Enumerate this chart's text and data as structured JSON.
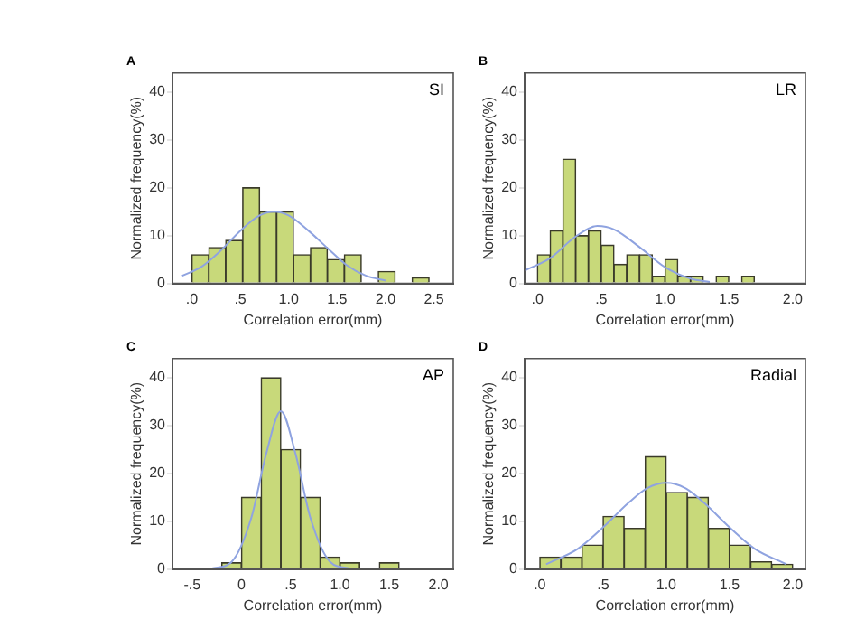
{
  "chart_data": [
    {
      "type": "histogram",
      "title": "A",
      "annotations": [
        "SI"
      ],
      "xlabel": "Correlation error(mm)",
      "ylabel": "Normalized frequency(%)",
      "bins": [
        0,
        0.175,
        0.35,
        0.525,
        0.7,
        0.875,
        1.05,
        1.225,
        1.4,
        1.575,
        1.75,
        1.925,
        2.1,
        2.275,
        2.45
      ],
      "xlim": [
        -0.2,
        2.7
      ],
      "ylim": [
        0,
        44
      ],
      "xticks": [
        {
          "value": 0,
          "label": ".0"
        },
        {
          "value": 0.5,
          "label": ".5"
        },
        {
          "value": 1,
          "label": "1.0"
        },
        {
          "value": 1.5,
          "label": "1.5"
        },
        {
          "value": 2,
          "label": "2.0"
        },
        {
          "value": 2.5,
          "label": "2.5"
        }
      ],
      "yticks": [
        0,
        10,
        20,
        30,
        40
      ],
      "grid": false,
      "legend": false,
      "series": [
        {
          "color": "#c8d97a",
          "values": [
            6,
            7.5,
            9,
            20,
            15,
            15,
            6,
            7.5,
            5,
            6,
            0,
            2.5,
            0,
            1.2
          ]
        },
        {
          "type": "line",
          "color": "#8fa3e0",
          "marker": "none",
          "x": [
            -0.1,
            0.1,
            0.3,
            0.5,
            0.7,
            0.85,
            1.0,
            1.2,
            1.4,
            1.6,
            1.8,
            2.0
          ],
          "values": [
            1.6,
            3.5,
            6.9,
            11,
            14.2,
            15,
            14.2,
            11.1,
            7.4,
            3.8,
            1.6,
            0.6
          ]
        }
      ]
    },
    {
      "type": "histogram",
      "title": "B",
      "annotations": [
        "LR"
      ],
      "xlabel": "Correlation error(mm)",
      "ylabel": "Normalized frequency(%)",
      "bins": [
        0,
        0.1,
        0.2,
        0.3,
        0.4,
        0.5,
        0.6,
        0.7,
        0.8,
        0.9,
        1.0,
        1.1,
        1.2,
        1.3,
        1.4,
        1.5,
        1.6,
        1.7
      ],
      "xlim": [
        -0.1,
        2.1
      ],
      "ylim": [
        0,
        44
      ],
      "xticks": [
        {
          "value": 0,
          "label": ".0"
        },
        {
          "value": 0.5,
          "label": ".5"
        },
        {
          "value": 1,
          "label": "1.0"
        },
        {
          "value": 1.5,
          "label": "1.5"
        },
        {
          "value": 2,
          "label": "2.0"
        }
      ],
      "yticks": [
        0,
        10,
        20,
        30,
        40
      ],
      "grid": false,
      "legend": false,
      "series": [
        {
          "color": "#c8d97a",
          "values": [
            6,
            11,
            26,
            10,
            11,
            8,
            4,
            6,
            6,
            1.5,
            5,
            1.5,
            1.5,
            0,
            1.5,
            0,
            1.5
          ]
        },
        {
          "type": "line",
          "color": "#8fa3e0",
          "marker": "none",
          "x": [
            -0.1,
            0.1,
            0.3,
            0.47,
            0.6,
            0.8,
            1.0,
            1.2,
            1.35
          ],
          "values": [
            2.7,
            5.3,
            9.8,
            12,
            11.3,
            7.6,
            3.4,
            1.0,
            0.3
          ]
        }
      ]
    },
    {
      "type": "histogram",
      "title": "C",
      "annotations": [
        "AP"
      ],
      "xlabel": "Correlation error(mm)",
      "ylabel": "Normalized frequency(%)",
      "bins": [
        -0.2,
        0,
        0.2,
        0.4,
        0.6,
        0.8,
        1.0,
        1.2,
        1.4,
        1.6
      ],
      "xlim": [
        -0.7,
        2.15
      ],
      "ylim": [
        0,
        44
      ],
      "xticks": [
        {
          "value": -0.5,
          "label": "-.5"
        },
        {
          "value": 0,
          "label": "0"
        },
        {
          "value": 0.5,
          "label": ".5"
        },
        {
          "value": 1,
          "label": "1.0"
        },
        {
          "value": 1.5,
          "label": "1.5"
        },
        {
          "value": 2,
          "label": "2.0"
        }
      ],
      "yticks": [
        0,
        10,
        20,
        30,
        40
      ],
      "grid": false,
      "legend": false,
      "series": [
        {
          "color": "#c8d97a",
          "values": [
            1.3,
            15,
            40,
            25,
            15,
            2.5,
            1.3,
            0,
            1.3
          ]
        },
        {
          "type": "line",
          "color": "#8fa3e0",
          "marker": "none",
          "x": [
            -0.3,
            -0.1,
            0.1,
            0.25,
            0.4,
            0.55,
            0.7,
            0.9,
            1.1
          ],
          "values": [
            0.1,
            1.5,
            10.7,
            24,
            33,
            24,
            10.7,
            1.5,
            0.1
          ]
        }
      ]
    },
    {
      "type": "histogram",
      "title": "D",
      "annotations": [
        "Radial"
      ],
      "xlabel": "Correlation error(mm)",
      "ylabel": "Normalized frequency(%)",
      "bins": [
        0,
        0.167,
        0.333,
        0.5,
        0.667,
        0.833,
        1.0,
        1.167,
        1.333,
        1.5,
        1.667,
        1.833,
        2.0
      ],
      "xlim": [
        -0.12,
        2.1
      ],
      "ylim": [
        0,
        44
      ],
      "xticks": [
        {
          "value": 0,
          "label": ".0"
        },
        {
          "value": 0.5,
          "label": ".5"
        },
        {
          "value": 1,
          "label": "1.0"
        },
        {
          "value": 1.5,
          "label": "1.5"
        },
        {
          "value": 2,
          "label": "2.0"
        }
      ],
      "yticks": [
        0,
        10,
        20,
        30,
        40
      ],
      "grid": false,
      "legend": false,
      "series": [
        {
          "color": "#c8d97a",
          "values": [
            2.5,
            2.5,
            5,
            11,
            8.5,
            23.5,
            16,
            15,
            8.5,
            5,
            1.5,
            1
          ]
        },
        {
          "type": "line",
          "color": "#8fa3e0",
          "marker": "none",
          "x": [
            0.05,
            0.3,
            0.5,
            0.7,
            0.85,
            1.0,
            1.15,
            1.3,
            1.5,
            1.7,
            1.95
          ],
          "values": [
            1,
            4.2,
            8.7,
            13.8,
            16.9,
            18,
            16.9,
            13.8,
            8.7,
            4.2,
            1
          ]
        }
      ]
    }
  ]
}
